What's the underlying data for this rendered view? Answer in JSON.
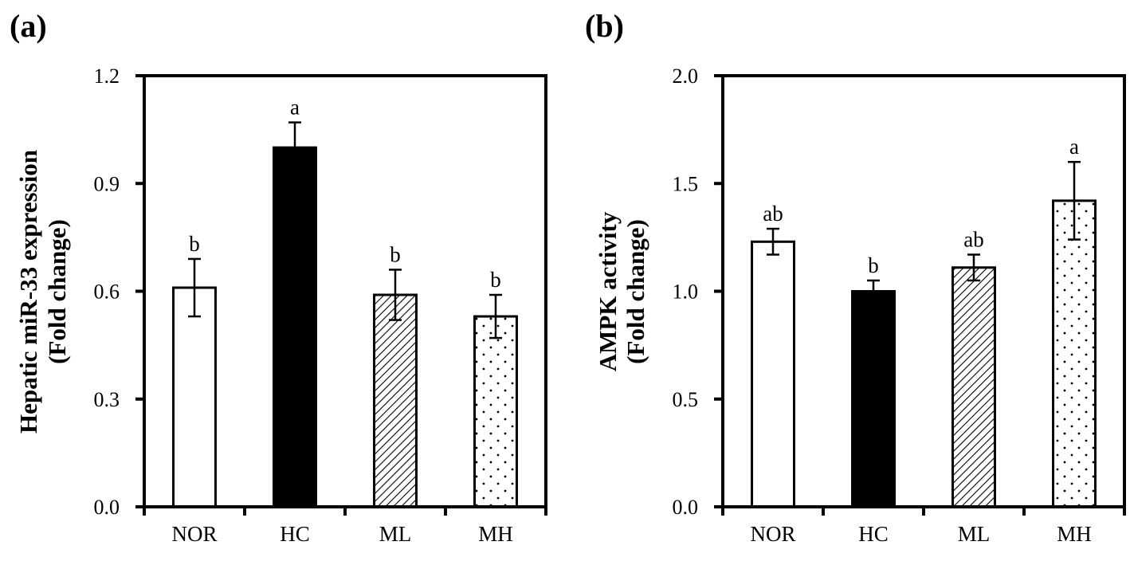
{
  "chart_data": [
    {
      "type": "bar",
      "panel_label": "(a)",
      "title": "",
      "xlabel": "",
      "ylabel": [
        "Hepatic miR-33 expression",
        "(Fold change)"
      ],
      "ylim": [
        0,
        1.2
      ],
      "yticks": [
        0.0,
        0.3,
        0.6,
        0.9,
        1.2
      ],
      "ytick_labels": [
        "0.0",
        "0.3",
        "0.6",
        "0.9",
        "1.2"
      ],
      "grid": false,
      "categories": [
        "NOR",
        "HC",
        "ML",
        "MH"
      ],
      "values": [
        0.61,
        1.0,
        0.59,
        0.53
      ],
      "errors": [
        0.08,
        0.07,
        0.07,
        0.06
      ],
      "significance": [
        "b",
        "a",
        "b",
        "b"
      ],
      "fills": [
        "white",
        "solid-black",
        "diagonal-hatch",
        "dots"
      ]
    },
    {
      "type": "bar",
      "panel_label": "(b)",
      "title": "",
      "xlabel": "",
      "ylabel": [
        "AMPK activity",
        "(Fold change)"
      ],
      "ylim": [
        0,
        2.0
      ],
      "yticks": [
        0.0,
        0.5,
        1.0,
        1.5,
        2.0
      ],
      "ytick_labels": [
        "0.0",
        "0.5",
        "1.0",
        "1.5",
        "2.0"
      ],
      "grid": false,
      "categories": [
        "NOR",
        "HC",
        "ML",
        "MH"
      ],
      "values": [
        1.23,
        1.0,
        1.11,
        1.42
      ],
      "errors": [
        0.06,
        0.05,
        0.06,
        0.18
      ],
      "significance": [
        "ab",
        "b",
        "ab",
        "a"
      ],
      "fills": [
        "white",
        "solid-black",
        "diagonal-hatch",
        "dots"
      ]
    }
  ],
  "colors": {
    "ink": "#000000",
    "background": "#ffffff"
  }
}
